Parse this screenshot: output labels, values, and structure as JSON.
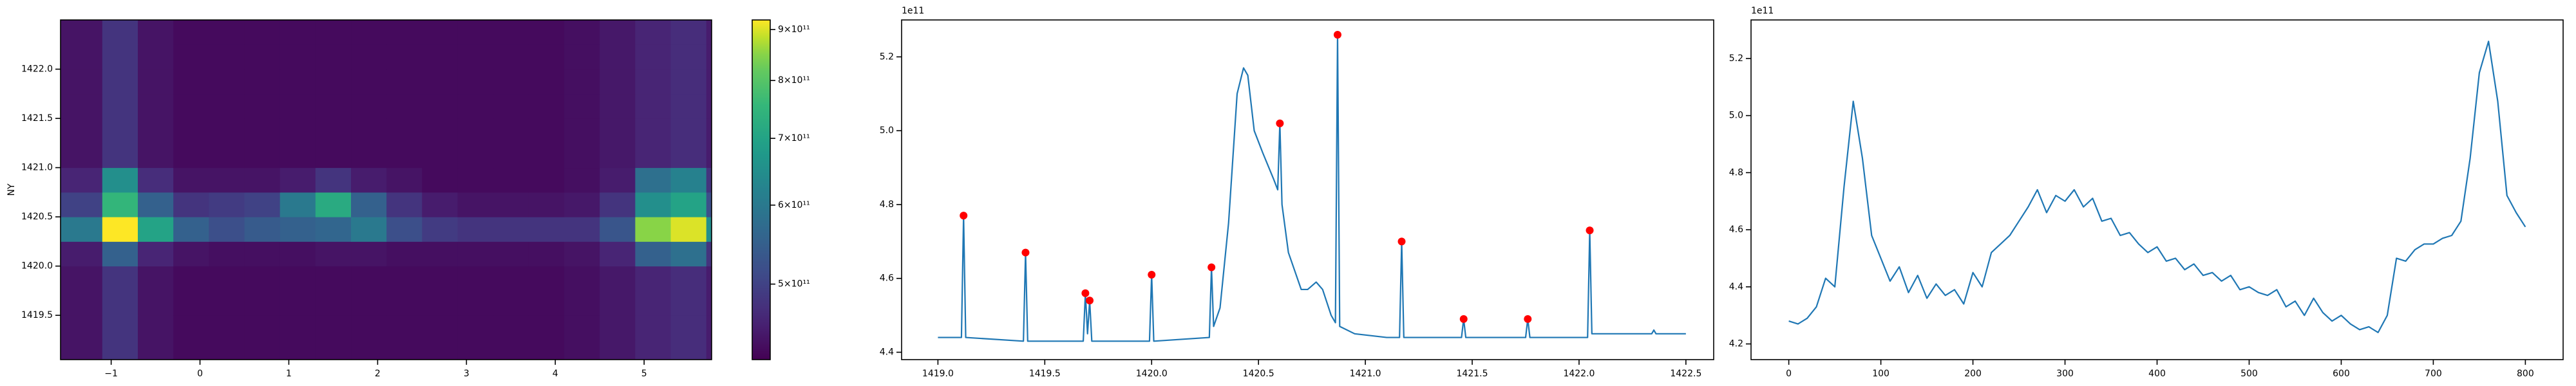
{
  "chart_data": [
    {
      "type": "heatmap",
      "colormap": "viridis",
      "ylabel": "NY",
      "xlim": [
        -1.57,
        5.76
      ],
      "ylim": [
        1419.05,
        1422.5
      ],
      "xticks": [
        {
          "value": -1,
          "label": "−1"
        },
        0,
        1,
        2,
        3,
        4,
        5
      ],
      "yticks": [
        1419.5,
        {
          "value": 1420,
          "label": "1420.0"
        },
        1420.5,
        {
          "value": 1421,
          "label": "1421.0"
        },
        1421.5,
        {
          "value": 1422,
          "label": "1422.0"
        }
      ],
      "x": [
        -1.9,
        -1.1,
        -0.7,
        -0.3,
        0.1,
        0.5,
        0.9,
        1.3,
        1.7,
        2.1,
        2.5,
        2.9,
        3.3,
        3.7,
        4.1,
        4.5,
        4.9,
        5.3,
        5.7,
        6.1
      ],
      "y": [
        1419.0,
        1419.25,
        1419.5,
        1419.75,
        1420.0,
        1420.25,
        1420.5,
        1420.75,
        1421.0,
        1421.25,
        1421.5,
        1421.75,
        1422.0,
        1422.25,
        1422.5
      ],
      "z": [
        [
          440000000000.0,
          480000000000.0,
          440000000000.0,
          430000000000.0,
          430000000000.0,
          430000000000.0,
          430000000000.0,
          430000000000.0,
          430000000000.0,
          430000000000.0,
          430000000000.0,
          430000000000.0,
          430000000000.0,
          430000000000.0,
          435000000000.0,
          445000000000.0,
          460000000000.0,
          470000000000.0,
          450000000000.0
        ],
        [
          440000000000.0,
          480000000000.0,
          440000000000.0,
          430000000000.0,
          430000000000.0,
          430000000000.0,
          430000000000.0,
          430000000000.0,
          430000000000.0,
          430000000000.0,
          430000000000.0,
          430000000000.0,
          430000000000.0,
          430000000000.0,
          435000000000.0,
          445000000000.0,
          460000000000.0,
          470000000000.0,
          450000000000.0
        ],
        [
          440000000000.0,
          480000000000.0,
          440000000000.0,
          430000000000.0,
          430000000000.0,
          430000000000.0,
          430000000000.0,
          430000000000.0,
          430000000000.0,
          430000000000.0,
          430000000000.0,
          430000000000.0,
          430000000000.0,
          430000000000.0,
          435000000000.0,
          445000000000.0,
          460000000000.0,
          470000000000.0,
          450000000000.0
        ],
        [
          440000000000.0,
          480000000000.0,
          440000000000.0,
          430000000000.0,
          430000000000.0,
          430000000000.0,
          430000000000.0,
          430000000000.0,
          430000000000.0,
          430000000000.0,
          430000000000.0,
          430000000000.0,
          430000000000.0,
          430000000000.0,
          435000000000.0,
          445000000000.0,
          460000000000.0,
          470000000000.0,
          450000000000.0
        ],
        [
          450000000000.0,
          550000000000.0,
          460000000000.0,
          440000000000.0,
          435000000000.0,
          435000000000.0,
          435000000000.0,
          440000000000.0,
          440000000000.0,
          435000000000.0,
          435000000000.0,
          435000000000.0,
          435000000000.0,
          435000000000.0,
          440000000000.0,
          460000000000.0,
          550000000000.0,
          580000000000.0,
          480000000000.0
        ],
        [
          600000000000.0,
          920000000000.0,
          700000000000.0,
          550000000000.0,
          520000000000.0,
          540000000000.0,
          550000000000.0,
          560000000000.0,
          600000000000.0,
          520000000000.0,
          490000000000.0,
          480000000000.0,
          480000000000.0,
          480000000000.0,
          480000000000.0,
          530000000000.0,
          850000000000.0,
          900000000000.0,
          650000000000.0
        ],
        [
          500000000000.0,
          750000000000.0,
          550000000000.0,
          480000000000.0,
          490000000000.0,
          500000000000.0,
          600000000000.0,
          720000000000.0,
          550000000000.0,
          480000000000.0,
          450000000000.0,
          440000000000.0,
          440000000000.0,
          440000000000.0,
          445000000000.0,
          480000000000.0,
          650000000000.0,
          700000000000.0,
          520000000000.0
        ],
        [
          460000000000.0,
          650000000000.0,
          470000000000.0,
          440000000000.0,
          440000000000.0,
          440000000000.0,
          450000000000.0,
          480000000000.0,
          450000000000.0,
          440000000000.0,
          430000000000.0,
          430000000000.0,
          430000000000.0,
          430000000000.0,
          435000000000.0,
          450000000000.0,
          580000000000.0,
          620000000000.0,
          480000000000.0
        ],
        [
          440000000000.0,
          480000000000.0,
          440000000000.0,
          430000000000.0,
          430000000000.0,
          430000000000.0,
          430000000000.0,
          430000000000.0,
          430000000000.0,
          430000000000.0,
          430000000000.0,
          430000000000.0,
          430000000000.0,
          430000000000.0,
          435000000000.0,
          445000000000.0,
          460000000000.0,
          470000000000.0,
          450000000000.0
        ],
        [
          440000000000.0,
          480000000000.0,
          440000000000.0,
          430000000000.0,
          430000000000.0,
          430000000000.0,
          430000000000.0,
          430000000000.0,
          430000000000.0,
          430000000000.0,
          430000000000.0,
          430000000000.0,
          430000000000.0,
          430000000000.0,
          435000000000.0,
          445000000000.0,
          460000000000.0,
          470000000000.0,
          450000000000.0
        ],
        [
          440000000000.0,
          480000000000.0,
          440000000000.0,
          430000000000.0,
          430000000000.0,
          430000000000.0,
          430000000000.0,
          430000000000.0,
          430000000000.0,
          430000000000.0,
          430000000000.0,
          430000000000.0,
          430000000000.0,
          430000000000.0,
          435000000000.0,
          445000000000.0,
          460000000000.0,
          470000000000.0,
          450000000000.0
        ],
        [
          440000000000.0,
          480000000000.0,
          440000000000.0,
          430000000000.0,
          430000000000.0,
          430000000000.0,
          430000000000.0,
          430000000000.0,
          430000000000.0,
          430000000000.0,
          430000000000.0,
          430000000000.0,
          430000000000.0,
          430000000000.0,
          435000000000.0,
          445000000000.0,
          460000000000.0,
          470000000000.0,
          450000000000.0
        ],
        [
          440000000000.0,
          480000000000.0,
          440000000000.0,
          430000000000.0,
          430000000000.0,
          430000000000.0,
          430000000000.0,
          430000000000.0,
          430000000000.0,
          430000000000.0,
          430000000000.0,
          430000000000.0,
          430000000000.0,
          430000000000.0,
          435000000000.0,
          445000000000.0,
          460000000000.0,
          470000000000.0,
          450000000000.0
        ],
        [
          440000000000.0,
          480000000000.0,
          440000000000.0,
          430000000000.0,
          430000000000.0,
          430000000000.0,
          430000000000.0,
          430000000000.0,
          430000000000.0,
          430000000000.0,
          430000000000.0,
          430000000000.0,
          430000000000.0,
          430000000000.0,
          435000000000.0,
          445000000000.0,
          460000000000.0,
          470000000000.0,
          450000000000.0
        ]
      ],
      "colorbar": {
        "scale": "log",
        "lim": [
          420000000000.0,
          920000000000.0
        ],
        "ticks": [
          {
            "value": 500000000000.0,
            "label": "5×10¹¹"
          },
          {
            "value": 600000000000.0,
            "label": "6×10¹¹"
          },
          {
            "value": 700000000000.0,
            "label": "7×10¹¹"
          },
          {
            "value": 800000000000.0,
            "label": "8×10¹¹"
          },
          {
            "value": 900000000000.0,
            "label": "9×10¹¹"
          }
        ]
      }
    },
    {
      "type": "line",
      "offset_label": "1e11",
      "xlim": [
        1418.83,
        1422.63
      ],
      "ylim": [
        4.38,
        5.3
      ],
      "xticks": [
        {
          "value": 1419,
          "label": "1419.0"
        },
        1419.5,
        {
          "value": 1420,
          "label": "1420.0"
        },
        1420.5,
        {
          "value": 1421,
          "label": "1421.0"
        },
        1421.5,
        {
          "value": 1422,
          "label": "1422.0"
        },
        1422.5
      ],
      "yticks": [
        4.4,
        4.6,
        4.8,
        {
          "value": 5,
          "label": "5.0"
        },
        5.2
      ],
      "series": [
        {
          "color": "#1f77b4",
          "x": [
            1419.0,
            1419.1,
            1419.11,
            1419.12,
            1419.13,
            1419.4,
            1419.41,
            1419.42,
            1419.68,
            1419.69,
            1419.7,
            1419.71,
            1419.72,
            1419.99,
            1420.0,
            1420.01,
            1420.27,
            1420.28,
            1420.29,
            1420.32,
            1420.36,
            1420.4,
            1420.43,
            1420.45,
            1420.48,
            1420.52,
            1420.57,
            1420.59,
            1420.6,
            1420.61,
            1420.64,
            1420.7,
            1420.73,
            1420.77,
            1420.8,
            1420.84,
            1420.86,
            1420.87,
            1420.88,
            1420.95,
            1421.1,
            1421.16,
            1421.17,
            1421.18,
            1421.45,
            1421.46,
            1421.47,
            1421.75,
            1421.76,
            1421.77,
            1422.04,
            1422.05,
            1422.06,
            1422.34,
            1422.35,
            1422.36,
            1422.5
          ],
          "values": [
            4.44,
            4.44,
            4.44,
            4.77,
            4.44,
            4.43,
            4.67,
            4.43,
            4.43,
            4.56,
            4.45,
            4.54,
            4.43,
            4.43,
            4.61,
            4.43,
            4.44,
            4.63,
            4.47,
            4.52,
            4.75,
            5.1,
            5.17,
            5.15,
            5.0,
            4.94,
            4.87,
            4.84,
            5.02,
            4.8,
            4.67,
            4.57,
            4.57,
            4.59,
            4.57,
            4.5,
            4.48,
            5.26,
            4.47,
            4.45,
            4.44,
            4.44,
            4.7,
            4.44,
            4.44,
            4.49,
            4.44,
            4.44,
            4.49,
            4.44,
            4.44,
            4.73,
            4.45,
            4.45,
            4.46,
            4.45,
            4.45
          ]
        },
        {
          "color": "red",
          "marker": "o",
          "x": [
            1419.12,
            1419.41,
            1419.69,
            1419.71,
            1420.0,
            1420.28,
            1420.6,
            1420.87,
            1421.17,
            1421.46,
            1421.76,
            1422.05
          ],
          "values": [
            4.77,
            4.67,
            4.56,
            4.54,
            4.61,
            4.63,
            5.02,
            5.26,
            4.7,
            4.49,
            4.49,
            4.73
          ]
        }
      ]
    },
    {
      "type": "line",
      "offset_label": "1e11",
      "xlim": [
        -41,
        841
      ],
      "ylim": [
        4.145,
        5.335
      ],
      "xticks": [
        0,
        100,
        200,
        300,
        400,
        500,
        600,
        700,
        800
      ],
      "yticks": [
        4.2,
        4.4,
        4.6,
        4.8,
        {
          "value": 5,
          "label": "5.0"
        },
        5.2
      ],
      "series": [
        {
          "color": "#1f77b4",
          "x": [
            0,
            10,
            20,
            30,
            40,
            50,
            60,
            70,
            80,
            90,
            100,
            110,
            120,
            130,
            140,
            150,
            160,
            170,
            180,
            190,
            200,
            210,
            220,
            230,
            240,
            250,
            260,
            270,
            280,
            290,
            300,
            310,
            320,
            330,
            340,
            350,
            360,
            370,
            380,
            390,
            400,
            410,
            420,
            430,
            440,
            450,
            460,
            470,
            480,
            490,
            500,
            510,
            520,
            530,
            540,
            550,
            560,
            570,
            580,
            590,
            600,
            610,
            620,
            630,
            640,
            650,
            660,
            670,
            680,
            690,
            700,
            710,
            720,
            730,
            740,
            750,
            760,
            770,
            780,
            790,
            800
          ],
          "values": [
            4.28,
            4.27,
            4.29,
            4.33,
            4.43,
            4.4,
            4.75,
            5.05,
            4.85,
            4.58,
            4.5,
            4.42,
            4.47,
            4.38,
            4.44,
            4.36,
            4.41,
            4.37,
            4.39,
            4.34,
            4.45,
            4.4,
            4.52,
            4.55,
            4.58,
            4.63,
            4.68,
            4.74,
            4.66,
            4.72,
            4.7,
            4.74,
            4.68,
            4.71,
            4.63,
            4.64,
            4.58,
            4.59,
            4.55,
            4.52,
            4.54,
            4.49,
            4.5,
            4.46,
            4.48,
            4.44,
            4.45,
            4.42,
            4.44,
            4.39,
            4.4,
            4.38,
            4.37,
            4.39,
            4.33,
            4.35,
            4.3,
            4.36,
            4.31,
            4.28,
            4.3,
            4.27,
            4.25,
            4.26,
            4.24,
            4.3,
            4.5,
            4.49,
            4.53,
            4.55,
            4.55,
            4.57,
            4.58,
            4.63,
            4.85,
            5.15,
            5.26,
            5.05,
            4.72,
            4.66,
            4.61
          ]
        }
      ]
    }
  ]
}
